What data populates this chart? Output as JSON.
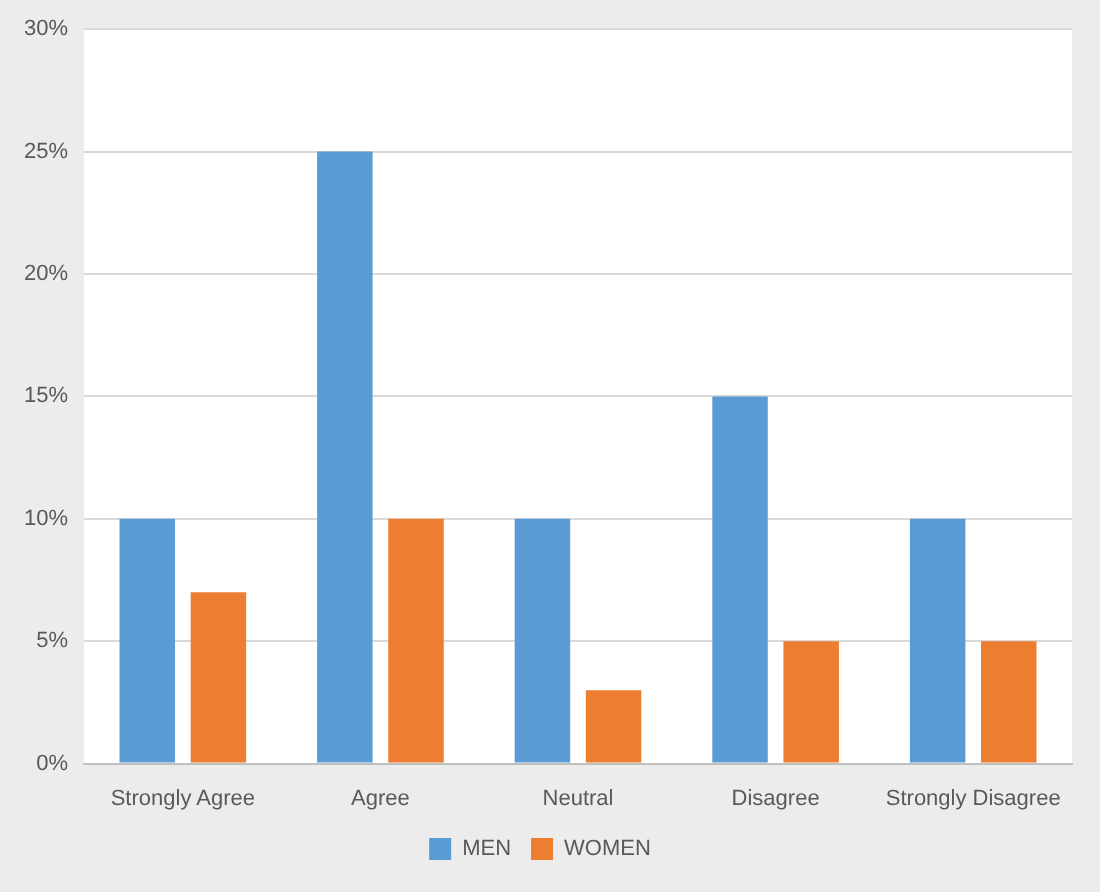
{
  "chart_data": {
    "type": "bar",
    "categories": [
      "Strongly Agree",
      "Agree",
      "Neutral",
      "Disagree",
      "Strongly Disagree"
    ],
    "series": [
      {
        "name": "MEN",
        "color": "#5b9bd5",
        "values": [
          10,
          25,
          10,
          15,
          10
        ]
      },
      {
        "name": "WOMEN",
        "color": "#ed7d31",
        "values": [
          7,
          10,
          3,
          5,
          5
        ]
      }
    ],
    "ylim": [
      0,
      30
    ],
    "yticks": [
      {
        "value": 0,
        "label": "0%"
      },
      {
        "value": 5,
        "label": "5%"
      },
      {
        "value": 10,
        "label": "10%"
      },
      {
        "value": 15,
        "label": "15%"
      },
      {
        "value": 20,
        "label": "20%"
      },
      {
        "value": 25,
        "label": "25%"
      },
      {
        "value": 30,
        "label": "30%"
      }
    ],
    "grid": "y",
    "legend": "bottom"
  }
}
